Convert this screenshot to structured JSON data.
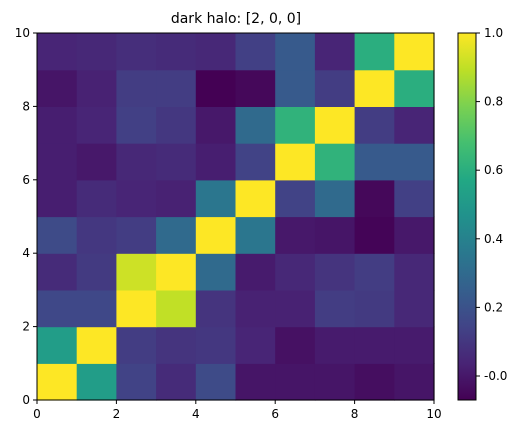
{
  "chart_data": {
    "type": "heatmap",
    "title": "dark halo: [2, 0, 0]",
    "xlabel": "",
    "ylabel": "",
    "xlim": [
      0,
      10
    ],
    "ylim": [
      0,
      10
    ],
    "x_ticks": [
      "0",
      "2",
      "4",
      "6",
      "8",
      "10"
    ],
    "y_ticks": [
      "0",
      "2",
      "4",
      "6",
      "8",
      "10"
    ],
    "colormap": "viridis",
    "vmin": -0.07,
    "vmax": 1.0,
    "colorbar_ticks": [
      "-0.0",
      "0.2",
      "0.4",
      "0.6",
      "0.8",
      "1.0"
    ],
    "colorbar_tick_values": [
      0.0,
      0.2,
      0.4,
      0.6,
      0.8,
      1.0
    ],
    "grid": false,
    "rows_from_bottom": [
      [
        1.0,
        0.52,
        0.14,
        0.06,
        0.17,
        -0.01,
        -0.01,
        -0.01,
        -0.03,
        -0.01
      ],
      [
        0.52,
        1.0,
        0.12,
        0.09,
        0.1,
        0.04,
        -0.02,
        0.01,
        0.01,
        0.01
      ],
      [
        0.16,
        0.16,
        1.0,
        0.9,
        0.09,
        0.03,
        0.03,
        0.12,
        0.11,
        0.05
      ],
      [
        0.06,
        0.11,
        0.92,
        1.0,
        0.3,
        0.01,
        0.05,
        0.09,
        0.12,
        0.05
      ],
      [
        0.17,
        0.1,
        0.12,
        0.3,
        1.0,
        0.35,
        0.0,
        -0.01,
        -0.06,
        0.0
      ],
      [
        0.02,
        0.06,
        0.04,
        0.03,
        0.35,
        1.0,
        0.14,
        0.3,
        -0.05,
        0.13
      ],
      [
        0.02,
        0.0,
        0.05,
        0.06,
        0.02,
        0.14,
        1.0,
        0.62,
        0.23,
        0.23
      ],
      [
        0.02,
        0.04,
        0.13,
        0.1,
        0.0,
        0.3,
        0.62,
        1.0,
        0.12,
        0.04
      ],
      [
        -0.01,
        0.03,
        0.12,
        0.12,
        -0.07,
        -0.05,
        0.23,
        0.12,
        1.0,
        0.6
      ],
      [
        0.04,
        0.05,
        0.07,
        0.06,
        0.05,
        0.13,
        0.23,
        0.04,
        0.6,
        1.0
      ]
    ]
  }
}
